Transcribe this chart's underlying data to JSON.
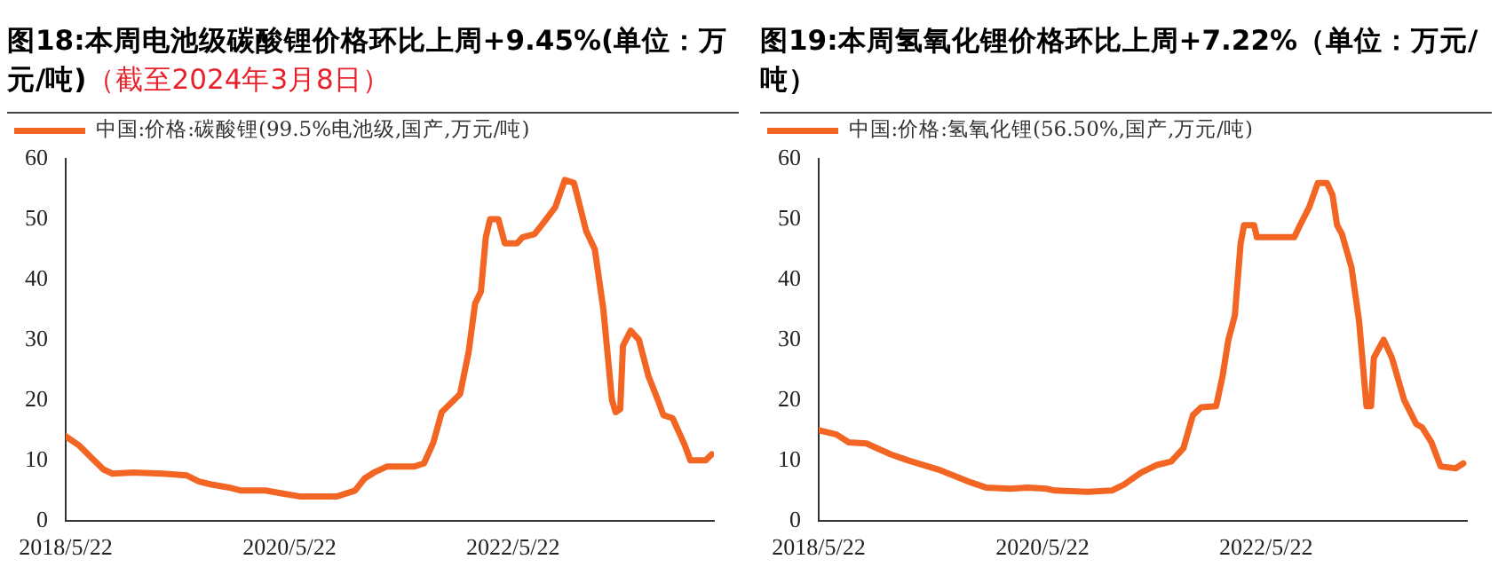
{
  "chart_data": [
    {
      "type": "line",
      "title": "图18:本周电池级碳酸锂价格环比上周+9.45%(单位：万元/吨)",
      "subtitle": "（截至2024年3月8日）",
      "legend": "top left",
      "grid": false,
      "marker": "none",
      "line_style": "solid",
      "xlim": [
        "2018-05-22",
        "2024-03-08"
      ],
      "xticks": [
        {
          "value": "2018-05-22",
          "label": "2018/5/22"
        },
        {
          "value": "2020-05-22",
          "label": "2020/5/22"
        },
        {
          "value": "2022-05-22",
          "label": "2022/5/22"
        }
      ],
      "ylim": [
        0,
        60
      ],
      "yticks": [
        0,
        10,
        20,
        30,
        40,
        50,
        60
      ],
      "series": [
        {
          "name": "中国:价格:碳酸锂(99.5%电池级,国产,万元/吨)",
          "color": "#f26522",
          "x": [
            "2018-05-22",
            "2018-07-04",
            "2018-08-13",
            "2018-09-22",
            "2018-10-22",
            "2018-12-28",
            "2019-04-03",
            "2019-06-22",
            "2019-07-31",
            "2019-09-10",
            "2019-11-06",
            "2019-12-16",
            "2020-03-04",
            "2020-04-30",
            "2020-06-28",
            "2020-10-22",
            "2020-12-22",
            "2021-01-22",
            "2021-02-22",
            "2021-04-06",
            "2021-07-04",
            "2021-08-04",
            "2021-09-04",
            "2021-10-01",
            "2021-10-31",
            "2021-11-30",
            "2021-12-28",
            "2022-01-18",
            "2022-02-06",
            "2022-02-22",
            "2022-03-08",
            "2022-04-04",
            "2022-04-25",
            "2022-06-04",
            "2022-06-22",
            "2022-07-31",
            "2022-08-31",
            "2022-10-07",
            "2022-11-07",
            "2022-12-07",
            "2023-01-16",
            "2023-02-13",
            "2023-03-13",
            "2023-04-10",
            "2023-04-22",
            "2023-05-07",
            "2023-05-16",
            "2023-06-10",
            "2023-07-07",
            "2023-08-07",
            "2023-09-07",
            "2023-09-25",
            "2023-10-25",
            "2023-12-04",
            "2023-12-22",
            "2024-02-10",
            "2024-03-01"
          ],
          "values": [
            14,
            12.5,
            10.5,
            8.5,
            7.8,
            8,
            7.8,
            7.5,
            6.5,
            6,
            5.5,
            5,
            5,
            4.5,
            4,
            4,
            5,
            7,
            8,
            9,
            9,
            9.5,
            13,
            18,
            19.5,
            21,
            28,
            36,
            38,
            47,
            50,
            50,
            46,
            46,
            47,
            47.5,
            49.5,
            52,
            56.5,
            56,
            48,
            45,
            35,
            20,
            18,
            18.5,
            29,
            31.5,
            30,
            24,
            20,
            17.5,
            17,
            12.5,
            10,
            10,
            11
          ]
        }
      ]
    },
    {
      "type": "line",
      "title": "图19:本周氢氧化锂价格环比上周+7.22%（单位：万元/吨）",
      "legend": "top left",
      "grid": false,
      "marker": "none",
      "line_style": "solid",
      "xlim": [
        "2018-05-22",
        "2024-03-08"
      ],
      "xticks": [
        {
          "value": "2018-05-22",
          "label": "2018/5/22"
        },
        {
          "value": "2020-05-22",
          "label": "2020/5/22"
        },
        {
          "value": "2022-05-22",
          "label": "2022/5/22"
        }
      ],
      "ylim": [
        0,
        60
      ],
      "yticks": [
        0,
        10,
        20,
        30,
        40,
        50,
        60
      ],
      "series": [
        {
          "name": "中国:价格:氢氧化锂(56.50%,国产,万元/吨)",
          "color": "#f26522",
          "x": [
            "2018-05-22",
            "2018-07-19",
            "2018-08-28",
            "2018-10-25",
            "2019-01-12",
            "2019-03-10",
            "2019-06-16",
            "2019-09-22",
            "2019-11-19",
            "2020-02-06",
            "2020-04-04",
            "2020-06-03",
            "2020-07-01",
            "2020-10-16",
            "2021-01-03",
            "2021-02-12",
            "2021-04-10",
            "2021-05-28",
            "2021-07-16",
            "2021-08-25",
            "2021-09-25",
            "2021-10-22",
            "2021-12-10",
            "2021-12-31",
            "2022-01-19",
            "2022-02-09",
            "2022-02-28",
            "2022-03-11",
            "2022-04-13",
            "2022-04-22",
            "2022-07-22",
            "2022-08-22",
            "2022-09-10",
            "2022-10-10",
            "2022-11-07",
            "2022-12-07",
            "2022-12-25",
            "2023-01-09",
            "2023-01-25",
            "2023-02-25",
            "2023-03-22",
            "2023-04-15",
            "2023-04-30",
            "2023-05-09",
            "2023-06-10",
            "2023-07-07",
            "2023-08-16",
            "2023-09-25",
            "2023-10-13",
            "2023-11-13",
            "2023-12-13",
            "2024-01-31",
            "2024-02-25"
          ],
          "values": [
            15,
            14.3,
            13,
            12.8,
            11,
            10,
            8.5,
            6.5,
            5.5,
            5.3,
            5.5,
            5.3,
            5,
            4.8,
            5,
            6,
            8,
            9.2,
            9.8,
            12,
            17.5,
            18.8,
            19,
            24,
            30,
            34,
            46,
            49,
            49,
            47,
            47,
            47,
            49,
            52,
            56,
            56,
            54,
            49,
            47.5,
            42,
            33,
            19,
            19,
            27,
            30,
            27,
            20,
            16,
            15.5,
            13,
            9,
            8.7,
            9.5
          ]
        }
      ]
    }
  ]
}
